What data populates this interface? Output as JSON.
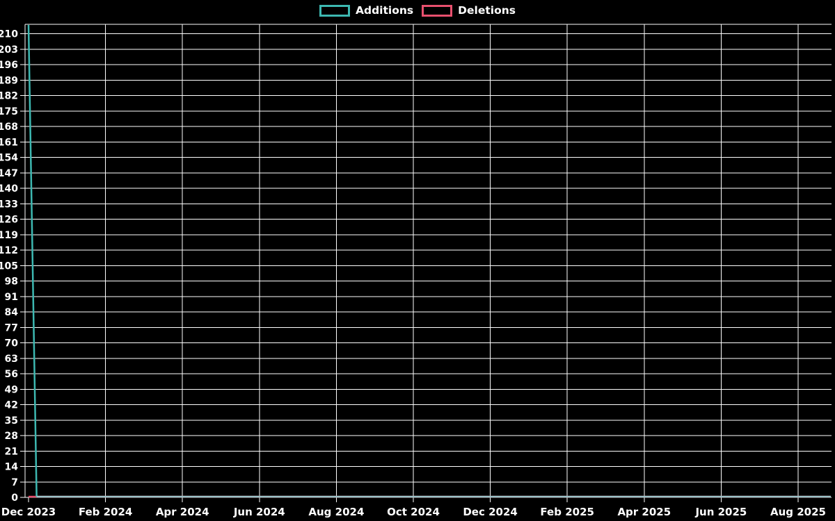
{
  "chart_data": {
    "type": "line",
    "title": "",
    "xlabel": "",
    "ylabel": "",
    "background": "#000000",
    "grid": true,
    "grid_color": "#ffffff",
    "text_color": "#ffffff",
    "legend_position": "top-center",
    "legend": [
      {
        "label": "Additions",
        "color": "#3db8b1"
      },
      {
        "label": "Deletions",
        "color": "#e8506e"
      }
    ],
    "x_ticks": [
      "Dec 2023",
      "Feb 2024",
      "Apr 2024",
      "Jun 2024",
      "Aug 2024",
      "Oct 2024",
      "Dec 2024",
      "Feb 2025",
      "Apr 2025",
      "Jun 2025",
      "Aug 2025"
    ],
    "x_months_per_tick": 2,
    "y_ticks": [
      0,
      7,
      14,
      21,
      28,
      35,
      42,
      49,
      56,
      63,
      70,
      77,
      84,
      91,
      98,
      105,
      112,
      119,
      126,
      133,
      140,
      147,
      154,
      161,
      168,
      175,
      182,
      189,
      196,
      203,
      210
    ],
    "ylim": [
      0,
      214.3
    ],
    "series": [
      {
        "name": "Additions",
        "color": "#3db8b1",
        "points_months": [
          [
            0,
            214
          ],
          [
            0.21,
            0
          ],
          [
            20.85,
            0
          ]
        ]
      },
      {
        "name": "Deletions",
        "color": "#e8506e",
        "points_months": [
          [
            0,
            0
          ],
          [
            20.85,
            0
          ]
        ]
      }
    ]
  }
}
